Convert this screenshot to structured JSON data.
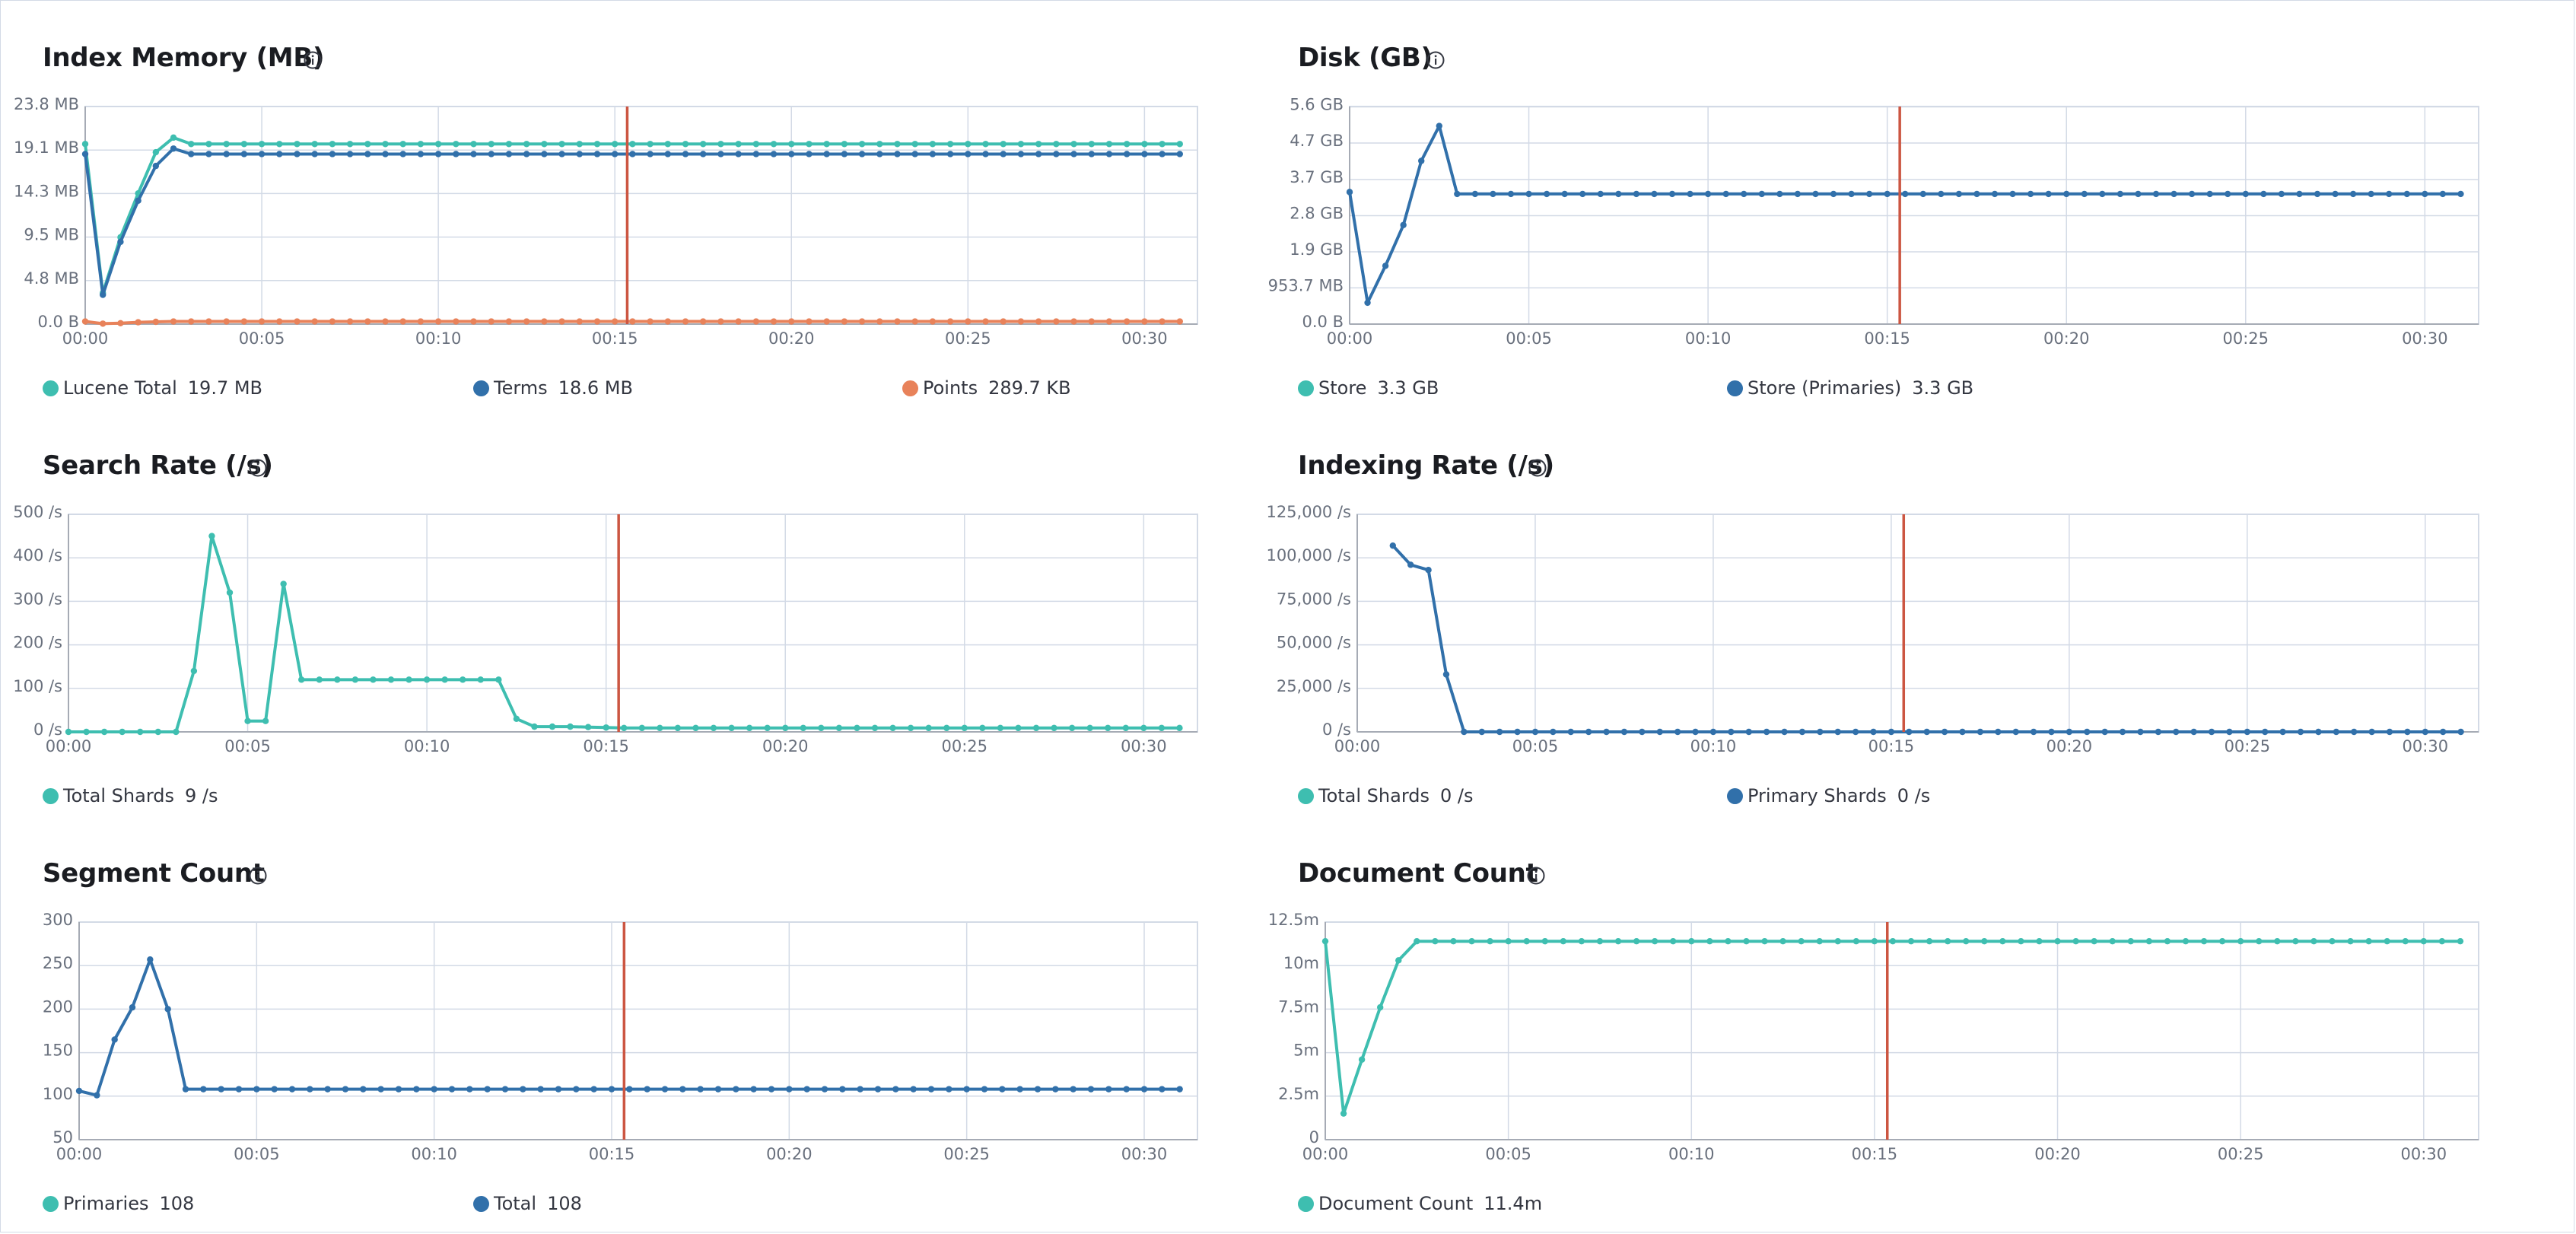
{
  "colors": {
    "teal": "#3ebeb0",
    "blue": "#3170aa",
    "orange": "#e8825a",
    "marker": "#cc5642",
    "grid": "#d3dae6",
    "axis": "#a6abb5"
  },
  "info_icon": "info-circle-icon",
  "x_tick_labels": [
    "00:00",
    "00:05",
    "00:10",
    "00:15",
    "00:20",
    "00:25",
    "00:30"
  ],
  "chart_data": [
    {
      "id": "index-memory",
      "type": "line",
      "title": "Index Memory (MB)",
      "xlim": [
        0,
        31.5
      ],
      "ylim": [
        0,
        23.8
      ],
      "y_ticks": [
        0,
        4.76,
        9.52,
        14.28,
        19.04,
        23.8
      ],
      "y_tick_labels": [
        "0.0 B",
        "4.8 MB",
        "9.5 MB",
        "14.3 MB",
        "19.1 MB",
        "23.8 MB"
      ],
      "marker_x": 15.35,
      "series": [
        {
          "name": "Lucene Total",
          "value_label": "19.7 MB",
          "color": "teal",
          "x": [
            0,
            0.5,
            1,
            1.5,
            2,
            2.5,
            3,
            4,
            8,
            16,
            24,
            31
          ],
          "y": [
            19.7,
            3.4,
            9.5,
            14.3,
            18.8,
            20.4,
            19.7,
            19.7,
            19.7,
            19.7,
            19.7,
            19.7
          ]
        },
        {
          "name": "Terms",
          "value_label": "18.6 MB",
          "color": "blue",
          "x": [
            0,
            0.5,
            1,
            1.5,
            2,
            2.5,
            3,
            4,
            8,
            16,
            24,
            31
          ],
          "y": [
            18.6,
            3.2,
            9.0,
            13.5,
            17.3,
            19.2,
            18.6,
            18.6,
            18.6,
            18.6,
            18.6,
            18.6
          ]
        },
        {
          "name": "Points",
          "value_label": "289.7 KB",
          "color": "orange",
          "x": [
            0,
            0.5,
            1,
            1.5,
            2,
            2.5,
            3,
            8,
            16,
            24,
            31
          ],
          "y": [
            0.29,
            0.05,
            0.1,
            0.2,
            0.25,
            0.29,
            0.29,
            0.29,
            0.29,
            0.29,
            0.29
          ]
        }
      ]
    },
    {
      "id": "disk",
      "type": "line",
      "title": "Disk (GB)",
      "xlim": [
        0,
        31.5
      ],
      "ylim": [
        0,
        5.6
      ],
      "y_ticks": [
        0,
        0.9314,
        1.86,
        2.79,
        3.72,
        4.66,
        5.59
      ],
      "y_tick_labels": [
        "0.0 B",
        "953.7 MB",
        "1.9 GB",
        "2.8 GB",
        "3.7 GB",
        "4.7 GB",
        "5.6 GB"
      ],
      "marker_x": 15.35,
      "series": [
        {
          "name": "Store",
          "value_label": "3.3 GB",
          "color": "teal",
          "x": [],
          "y": []
        },
        {
          "name": "Store (Primaries)",
          "value_label": "3.3 GB",
          "color": "blue",
          "x": [
            0,
            0.5,
            1,
            1.5,
            2,
            2.5,
            3,
            8,
            16,
            24,
            31
          ],
          "y": [
            3.4,
            0.55,
            1.5,
            2.55,
            4.2,
            5.1,
            3.35,
            3.35,
            3.35,
            3.35,
            3.35
          ]
        }
      ]
    },
    {
      "id": "search-rate",
      "type": "line",
      "title": "Search Rate (/s)",
      "xlim": [
        0,
        31.5
      ],
      "ylim": [
        0,
        500
      ],
      "y_ticks": [
        0,
        100,
        200,
        300,
        400,
        500
      ],
      "y_tick_labels": [
        "0 /s",
        "100 /s",
        "200 /s",
        "300 /s",
        "400 /s",
        "500 /s"
      ],
      "marker_x": 15.35,
      "series": [
        {
          "name": "Total Shards",
          "value_label": "9 /s",
          "color": "teal",
          "x": [
            0,
            1,
            1.5,
            2,
            2.5,
            3,
            3.5,
            4,
            4.5,
            5,
            5.5,
            6,
            6.5,
            7,
            12,
            12.5,
            13,
            13.5,
            14,
            15,
            15.5,
            20,
            25,
            31
          ],
          "y": [
            0,
            0,
            0,
            0,
            0,
            0,
            140,
            450,
            320,
            25,
            25,
            340,
            120,
            120,
            120,
            30,
            12,
            12,
            12,
            10,
            9,
            9,
            9,
            9
          ]
        }
      ]
    },
    {
      "id": "indexing-rate",
      "type": "line",
      "title": "Indexing Rate (/s)",
      "xlim": [
        0,
        31.5
      ],
      "ylim": [
        0,
        125000
      ],
      "y_ticks": [
        0,
        25000,
        50000,
        75000,
        100000,
        125000
      ],
      "y_tick_labels": [
        "0 /s",
        "25,000 /s",
        "50,000 /s",
        "75,000 /s",
        "100,000 /s",
        "125,000 /s"
      ],
      "marker_x": 15.35,
      "series": [
        {
          "name": "Total Shards",
          "value_label": "0 /s",
          "color": "teal",
          "x": [],
          "y": []
        },
        {
          "name": "Primary Shards",
          "value_label": "0 /s",
          "color": "blue",
          "x": [
            1,
            1.5,
            2,
            2.5,
            3,
            8,
            16,
            24,
            31
          ],
          "y": [
            107000,
            96000,
            93000,
            33000,
            0,
            0,
            0,
            0,
            0
          ]
        }
      ]
    },
    {
      "id": "segment-count",
      "type": "line",
      "title": "Segment Count",
      "xlim": [
        0,
        31.5
      ],
      "ylim": [
        50,
        300
      ],
      "y_ticks": [
        50,
        100,
        150,
        200,
        250,
        300
      ],
      "y_tick_labels": [
        "50",
        "100",
        "150",
        "200",
        "250",
        "300"
      ],
      "marker_x": 15.35,
      "series": [
        {
          "name": "Primaries",
          "value_label": "108",
          "color": "teal",
          "x": [],
          "y": []
        },
        {
          "name": "Total",
          "value_label": "108",
          "color": "blue",
          "x": [
            0,
            0.5,
            1,
            1.5,
            2,
            2.5,
            3,
            8,
            16,
            24,
            31
          ],
          "y": [
            106,
            101,
            165,
            202,
            257,
            200,
            108,
            108,
            108,
            108,
            108
          ]
        }
      ]
    },
    {
      "id": "document-count",
      "type": "line",
      "title": "Document Count",
      "xlim": [
        0,
        31.5
      ],
      "ylim": [
        0,
        12500000
      ],
      "y_ticks": [
        0,
        2500000,
        5000000,
        7500000,
        10000000,
        12500000
      ],
      "y_tick_labels": [
        "0",
        "2.5m",
        "5m",
        "7.5m",
        "10m",
        "12.5m"
      ],
      "marker_x": 15.35,
      "series": [
        {
          "name": "Document Count",
          "value_label": "11.4m",
          "color": "teal",
          "x": [
            0,
            0.5,
            1,
            1.5,
            2,
            2.5,
            3,
            8,
            16,
            24,
            31
          ],
          "y": [
            11400000,
            1500000,
            4600000,
            7600000,
            10300000,
            11400000,
            11400000,
            11400000,
            11400000,
            11400000,
            11400000
          ]
        }
      ]
    }
  ]
}
